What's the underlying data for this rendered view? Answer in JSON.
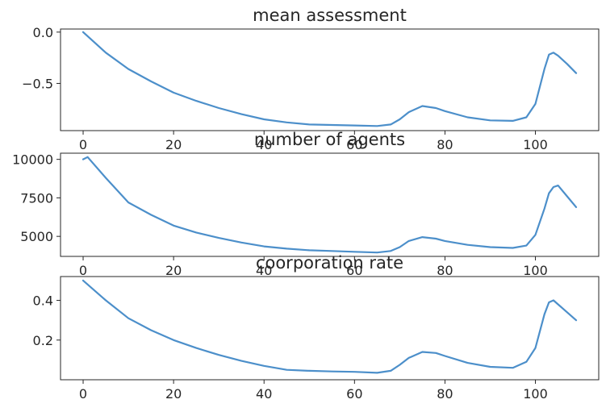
{
  "chart_data": [
    {
      "type": "line",
      "title": "mean assessment",
      "xlabel": "",
      "ylabel": "",
      "xlim": [
        -5,
        114
      ],
      "ylim": [
        -0.96,
        0.03
      ],
      "xticks": [
        0,
        20,
        40,
        60,
        80,
        100
      ],
      "yticks": [
        0.0,
        -0.5
      ],
      "ytick_labels": [
        "0.0",
        "−0.5"
      ],
      "grid": false,
      "color": "#4c8fca",
      "series": [
        {
          "x": [
            0,
            5,
            10,
            15,
            20,
            25,
            30,
            35,
            40,
            45,
            50,
            55,
            60,
            65,
            68,
            70,
            72,
            75,
            78,
            80,
            85,
            90,
            95,
            98,
            100,
            102,
            103,
            104,
            105,
            107,
            109
          ],
          "y": [
            0.0,
            -0.2,
            -0.36,
            -0.48,
            -0.59,
            -0.67,
            -0.74,
            -0.8,
            -0.85,
            -0.88,
            -0.9,
            -0.905,
            -0.91,
            -0.915,
            -0.9,
            -0.85,
            -0.78,
            -0.72,
            -0.74,
            -0.77,
            -0.83,
            -0.86,
            -0.865,
            -0.83,
            -0.7,
            -0.36,
            -0.22,
            -0.2,
            -0.23,
            -0.31,
            -0.4
          ]
        }
      ]
    },
    {
      "type": "line",
      "title": "number of agents",
      "xlabel": "",
      "ylabel": "",
      "xlim": [
        -5,
        114
      ],
      "ylim": [
        3700,
        10400
      ],
      "xticks": [
        0,
        20,
        40,
        60,
        80,
        100
      ],
      "yticks": [
        10000,
        7500,
        5000
      ],
      "ytick_labels": [
        "10000",
        "7500",
        "5000"
      ],
      "grid": false,
      "color": "#4c8fca",
      "series": [
        {
          "x": [
            0,
            1,
            5,
            10,
            15,
            20,
            25,
            30,
            35,
            40,
            45,
            50,
            55,
            60,
            65,
            68,
            70,
            72,
            75,
            78,
            80,
            85,
            90,
            95,
            98,
            100,
            102,
            103,
            104,
            105,
            107,
            109
          ],
          "y": [
            10000,
            10150,
            8800,
            7200,
            6400,
            5700,
            5250,
            4900,
            4600,
            4350,
            4200,
            4100,
            4050,
            4000,
            3950,
            4050,
            4300,
            4700,
            4950,
            4850,
            4700,
            4450,
            4300,
            4250,
            4400,
            5100,
            6800,
            7800,
            8200,
            8300,
            7600,
            6900
          ]
        }
      ]
    },
    {
      "type": "line",
      "title": "coorporation rate",
      "xlabel": "",
      "ylabel": "",
      "xlim": [
        -5,
        114
      ],
      "ylim": [
        0.0,
        0.52
      ],
      "xticks": [
        0,
        20,
        40,
        60,
        80,
        100
      ],
      "xtick_labels": [
        "0",
        "20",
        "40",
        "60",
        "80",
        "100"
      ],
      "yticks": [
        0.4,
        0.2
      ],
      "ytick_labels": [
        "0.4",
        "0.2"
      ],
      "grid": false,
      "color": "#4c8fca",
      "series": [
        {
          "x": [
            0,
            5,
            10,
            15,
            20,
            25,
            30,
            35,
            40,
            45,
            50,
            55,
            60,
            65,
            68,
            70,
            72,
            75,
            78,
            80,
            85,
            90,
            95,
            98,
            100,
            102,
            103,
            104,
            105,
            107,
            109
          ],
          "y": [
            0.5,
            0.4,
            0.31,
            0.25,
            0.2,
            0.16,
            0.125,
            0.095,
            0.07,
            0.05,
            0.045,
            0.042,
            0.04,
            0.035,
            0.045,
            0.075,
            0.11,
            0.14,
            0.135,
            0.12,
            0.085,
            0.065,
            0.06,
            0.09,
            0.16,
            0.33,
            0.39,
            0.4,
            0.38,
            0.34,
            0.3
          ]
        }
      ]
    }
  ]
}
